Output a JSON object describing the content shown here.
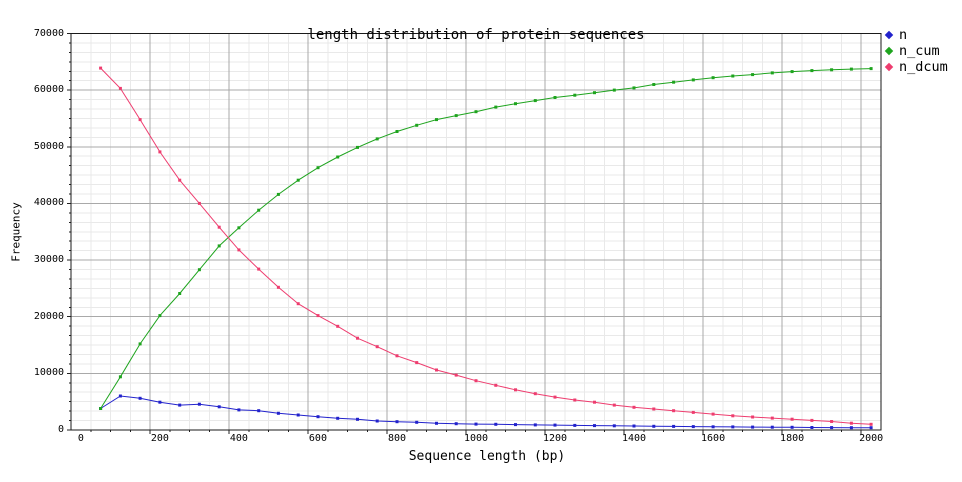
{
  "chart_data": {
    "type": "line",
    "title": "length distribution of protein sequences",
    "xlabel": "Sequence length (bp)",
    "ylabel": "Frequency",
    "x": [
      50,
      100,
      150,
      200,
      250,
      300,
      350,
      400,
      450,
      500,
      550,
      600,
      650,
      700,
      750,
      800,
      850,
      900,
      950,
      1000,
      1050,
      1100,
      1150,
      1200,
      1250,
      1300,
      1350,
      1400,
      1450,
      1500,
      1550,
      1600,
      1650,
      1700,
      1750,
      1800,
      1850,
      1900,
      1950,
      2000
    ],
    "series": [
      {
        "name": "n",
        "color": "#2222cc",
        "values": [
          3800,
          6000,
          5600,
          4900,
          4400,
          4550,
          4100,
          3550,
          3400,
          2950,
          2650,
          2350,
          2060,
          1890,
          1590,
          1470,
          1360,
          1180,
          1110,
          1050,
          1000,
          950,
          900,
          860,
          820,
          780,
          740,
          700,
          660,
          630,
          600,
          570,
          540,
          510,
          490,
          470,
          450,
          430,
          410,
          400
        ]
      },
      {
        "name": "n_cum",
        "color": "#1ea41e",
        "values": [
          3800,
          9400,
          15200,
          20200,
          24100,
          28300,
          32500,
          35700,
          38800,
          41600,
          44100,
          46300,
          48200,
          49900,
          51400,
          52700,
          53800,
          54800,
          55500,
          56200,
          57000,
          57600,
          58150,
          58700,
          59100,
          59550,
          60000,
          60400,
          61000,
          61400,
          61800,
          62200,
          62500,
          62750,
          63050,
          63280,
          63450,
          63600,
          63720,
          63800
        ]
      },
      {
        "name": "n_dcum",
        "color": "#ee3d6f",
        "values": [
          63900,
          60300,
          54800,
          49100,
          44100,
          40000,
          35800,
          31800,
          28400,
          25200,
          22300,
          20200,
          18300,
          16200,
          14700,
          13100,
          11900,
          10600,
          9700,
          8700,
          7900,
          7100,
          6400,
          5800,
          5300,
          4900,
          4400,
          4000,
          3700,
          3400,
          3100,
          2800,
          2500,
          2300,
          2100,
          1900,
          1700,
          1500,
          1200,
          1000
        ]
      }
    ],
    "x_ticks": [
      0,
      200,
      400,
      600,
      800,
      1000,
      1200,
      1400,
      1600,
      1800,
      2000
    ],
    "y_ticks": [
      0,
      10000,
      20000,
      30000,
      40000,
      50000,
      60000,
      70000
    ],
    "xlim": [
      0,
      2050
    ],
    "ylim": [
      0,
      70000
    ],
    "grid": true,
    "minor_grid": true,
    "legend_position": "outside-top-right"
  }
}
